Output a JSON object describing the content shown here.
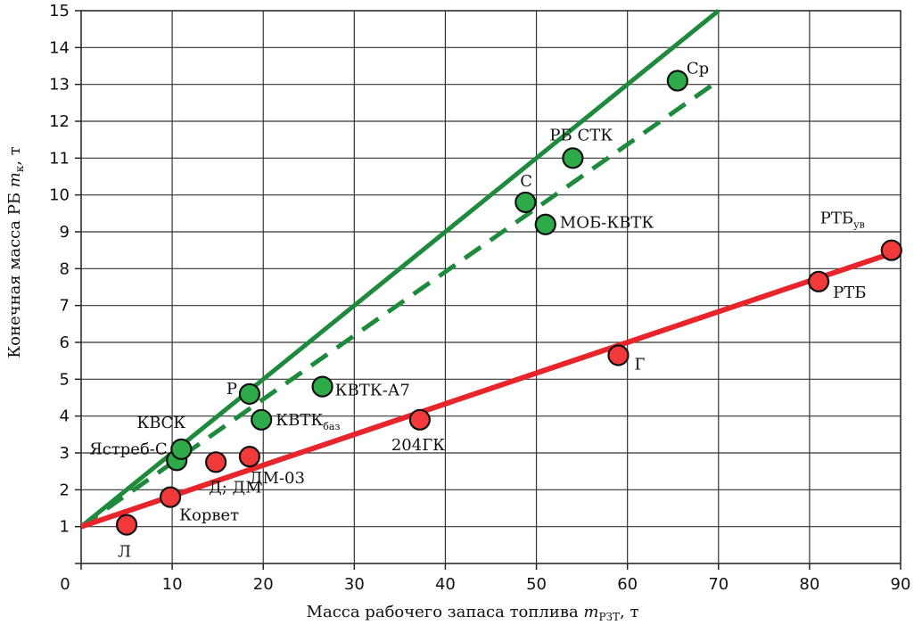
{
  "chart_data": {
    "type": "scatter",
    "xlabel": "Масса рабочего запаса топлива ",
    "xlabel_var": "m",
    "xlabel_sub": "РЗТ",
    "xlabel_unit": ", т",
    "ylabel": "Конечная  масса РБ ",
    "ylabel_var": "m",
    "ylabel_sub": "к",
    "ylabel_unit": ", т",
    "xlim": [
      0,
      90
    ],
    "ylim": [
      0,
      15
    ],
    "xticks": [
      0,
      10,
      20,
      30,
      40,
      50,
      60,
      70,
      80,
      90
    ],
    "yticks": [
      0,
      1,
      2,
      3,
      4,
      5,
      6,
      7,
      8,
      9,
      10,
      11,
      12,
      13,
      14,
      15
    ],
    "grid": true,
    "colors": {
      "green": "#1e8a3c",
      "green_fill": "#2eaa48",
      "red": "#e8252a",
      "red_fill": "#f23a3a"
    },
    "lines": [
      {
        "style": "solid",
        "color": "green",
        "points": [
          [
            0,
            1.0
          ],
          [
            70,
            15.0
          ]
        ]
      },
      {
        "style": "dashed",
        "color": "green",
        "points": [
          [
            0,
            1.0
          ],
          [
            70,
            13.1
          ]
        ]
      },
      {
        "style": "solid",
        "color": "red",
        "points": [
          [
            0,
            1.0
          ],
          [
            90,
            8.5
          ]
        ]
      }
    ],
    "series": [
      {
        "color": "green",
        "points": [
          {
            "x": 10.5,
            "y": 2.8,
            "label": "Ястреб-С",
            "sub": ""
          },
          {
            "x": 11.0,
            "y": 3.1,
            "label": "КВСК",
            "sub": ""
          },
          {
            "x": 18.5,
            "y": 4.6,
            "label": "Р",
            "sub": ""
          },
          {
            "x": 19.8,
            "y": 3.9,
            "label": "КВТК",
            "sub": "баз"
          },
          {
            "x": 26.5,
            "y": 4.8,
            "label": "КВТК-А7",
            "sub": ""
          },
          {
            "x": 48.8,
            "y": 9.8,
            "label": "С",
            "sub": ""
          },
          {
            "x": 51.0,
            "y": 9.2,
            "label": "МОБ-КВТК",
            "sub": ""
          },
          {
            "x": 54.0,
            "y": 11.0,
            "label": "РБ СТК",
            "sub": ""
          },
          {
            "x": 65.5,
            "y": 13.1,
            "label": "Ср",
            "sub": ""
          }
        ]
      },
      {
        "color": "red",
        "points": [
          {
            "x": 5.0,
            "y": 1.05,
            "label": "Л",
            "sub": ""
          },
          {
            "x": 9.8,
            "y": 1.8,
            "label": "Корвет",
            "sub": ""
          },
          {
            "x": 14.8,
            "y": 2.75,
            "label": "Д; ДМ",
            "sub": ""
          },
          {
            "x": 18.5,
            "y": 2.9,
            "label": "ДМ-03",
            "sub": ""
          },
          {
            "x": 37.2,
            "y": 3.9,
            "label": "204ГК",
            "sub": ""
          },
          {
            "x": 59.0,
            "y": 5.65,
            "label": "Г",
            "sub": ""
          },
          {
            "x": 81.0,
            "y": 7.65,
            "label": "РТБ",
            "sub": ""
          },
          {
            "x": 89.0,
            "y": 8.5,
            "label": "РТБ",
            "sub": "ув"
          }
        ]
      }
    ]
  }
}
